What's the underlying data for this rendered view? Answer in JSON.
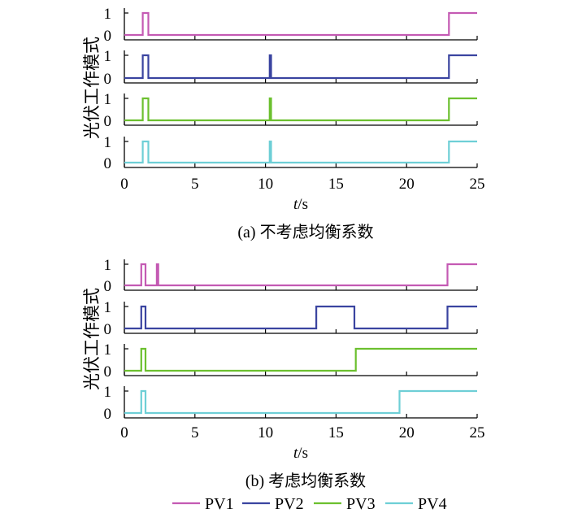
{
  "chart_data": [
    {
      "type": "line",
      "caption": "(a)  不考虑均衡系数",
      "ylabel": "光伏工作模式",
      "xlabel_italic": "t",
      "xlabel_unit": "/s",
      "xlim": [
        0,
        25
      ],
      "ylim": [
        0,
        1
      ],
      "xticks": [
        "0",
        "5",
        "10",
        "15",
        "20",
        "25"
      ],
      "yticks": [
        "0",
        "1"
      ],
      "grid": false,
      "series": [
        {
          "name": "PV1",
          "color": "#C45AB3",
          "points": [
            [
              0,
              0
            ],
            [
              1.3,
              0
            ],
            [
              1.3,
              1
            ],
            [
              1.7,
              1
            ],
            [
              1.7,
              0
            ],
            [
              23.0,
              0
            ],
            [
              23.0,
              1
            ],
            [
              25,
              1
            ]
          ]
        },
        {
          "name": "PV2",
          "color": "#3A44A0",
          "points": [
            [
              0,
              0
            ],
            [
              1.3,
              0
            ],
            [
              1.3,
              1
            ],
            [
              1.7,
              1
            ],
            [
              1.7,
              0
            ],
            [
              10.3,
              0
            ],
            [
              10.3,
              1
            ],
            [
              10.4,
              1
            ],
            [
              10.4,
              0
            ],
            [
              23.0,
              0
            ],
            [
              23.0,
              1
            ],
            [
              25,
              1
            ]
          ]
        },
        {
          "name": "PV3",
          "color": "#6CC02F",
          "points": [
            [
              0,
              0
            ],
            [
              1.3,
              0
            ],
            [
              1.3,
              1
            ],
            [
              1.7,
              1
            ],
            [
              1.7,
              0
            ],
            [
              10.3,
              0
            ],
            [
              10.3,
              1
            ],
            [
              10.4,
              1
            ],
            [
              10.4,
              0
            ],
            [
              23.0,
              0
            ],
            [
              23.0,
              1
            ],
            [
              25,
              1
            ]
          ]
        },
        {
          "name": "PV4",
          "color": "#6ECFD6",
          "points": [
            [
              0,
              0
            ],
            [
              1.3,
              0
            ],
            [
              1.3,
              1
            ],
            [
              1.7,
              1
            ],
            [
              1.7,
              0
            ],
            [
              10.3,
              0
            ],
            [
              10.3,
              1
            ],
            [
              10.4,
              1
            ],
            [
              10.4,
              0
            ],
            [
              23.0,
              0
            ],
            [
              23.0,
              1
            ],
            [
              25,
              1
            ]
          ]
        }
      ]
    },
    {
      "type": "line",
      "caption": "(b)  考虑均衡系数",
      "ylabel": "光伏工作模式",
      "xlabel_italic": "t",
      "xlabel_unit": "/s",
      "xlim": [
        0,
        25
      ],
      "ylim": [
        0,
        1
      ],
      "xticks": [
        "0",
        "5",
        "10",
        "15",
        "20",
        "25"
      ],
      "yticks": [
        "0",
        "1"
      ],
      "grid": false,
      "series": [
        {
          "name": "PV1",
          "color": "#C45AB3",
          "points": [
            [
              0,
              0
            ],
            [
              1.2,
              0
            ],
            [
              1.2,
              1
            ],
            [
              1.5,
              1
            ],
            [
              1.5,
              0
            ],
            [
              2.3,
              0
            ],
            [
              2.3,
              1
            ],
            [
              2.4,
              1
            ],
            [
              2.4,
              0
            ],
            [
              22.9,
              0
            ],
            [
              22.9,
              1
            ],
            [
              25,
              1
            ]
          ]
        },
        {
          "name": "PV2",
          "color": "#3A44A0",
          "points": [
            [
              0,
              0
            ],
            [
              1.2,
              0
            ],
            [
              1.2,
              1
            ],
            [
              1.5,
              1
            ],
            [
              1.5,
              0
            ],
            [
              13.6,
              0
            ],
            [
              13.6,
              1
            ],
            [
              16.3,
              1
            ],
            [
              16.3,
              0
            ],
            [
              22.9,
              0
            ],
            [
              22.9,
              1
            ],
            [
              25,
              1
            ]
          ]
        },
        {
          "name": "PV3",
          "color": "#6CC02F",
          "points": [
            [
              0,
              0
            ],
            [
              1.2,
              0
            ],
            [
              1.2,
              1
            ],
            [
              1.5,
              1
            ],
            [
              1.5,
              0
            ],
            [
              16.4,
              0
            ],
            [
              16.4,
              1
            ],
            [
              25,
              1
            ]
          ]
        },
        {
          "name": "PV4",
          "color": "#6ECFD6",
          "points": [
            [
              0,
              0
            ],
            [
              1.2,
              0
            ],
            [
              1.2,
              1
            ],
            [
              1.5,
              1
            ],
            [
              1.5,
              0
            ],
            [
              19.5,
              0
            ],
            [
              19.5,
              1
            ],
            [
              25,
              1
            ]
          ]
        }
      ]
    }
  ],
  "legend": {
    "placement": "bottom",
    "items": [
      {
        "label": "PV1",
        "color": "#C45AB3"
      },
      {
        "label": "PV2",
        "color": "#3A44A0"
      },
      {
        "label": "PV3",
        "color": "#6CC02F"
      },
      {
        "label": "PV4",
        "color": "#6ECFD6"
      }
    ]
  }
}
